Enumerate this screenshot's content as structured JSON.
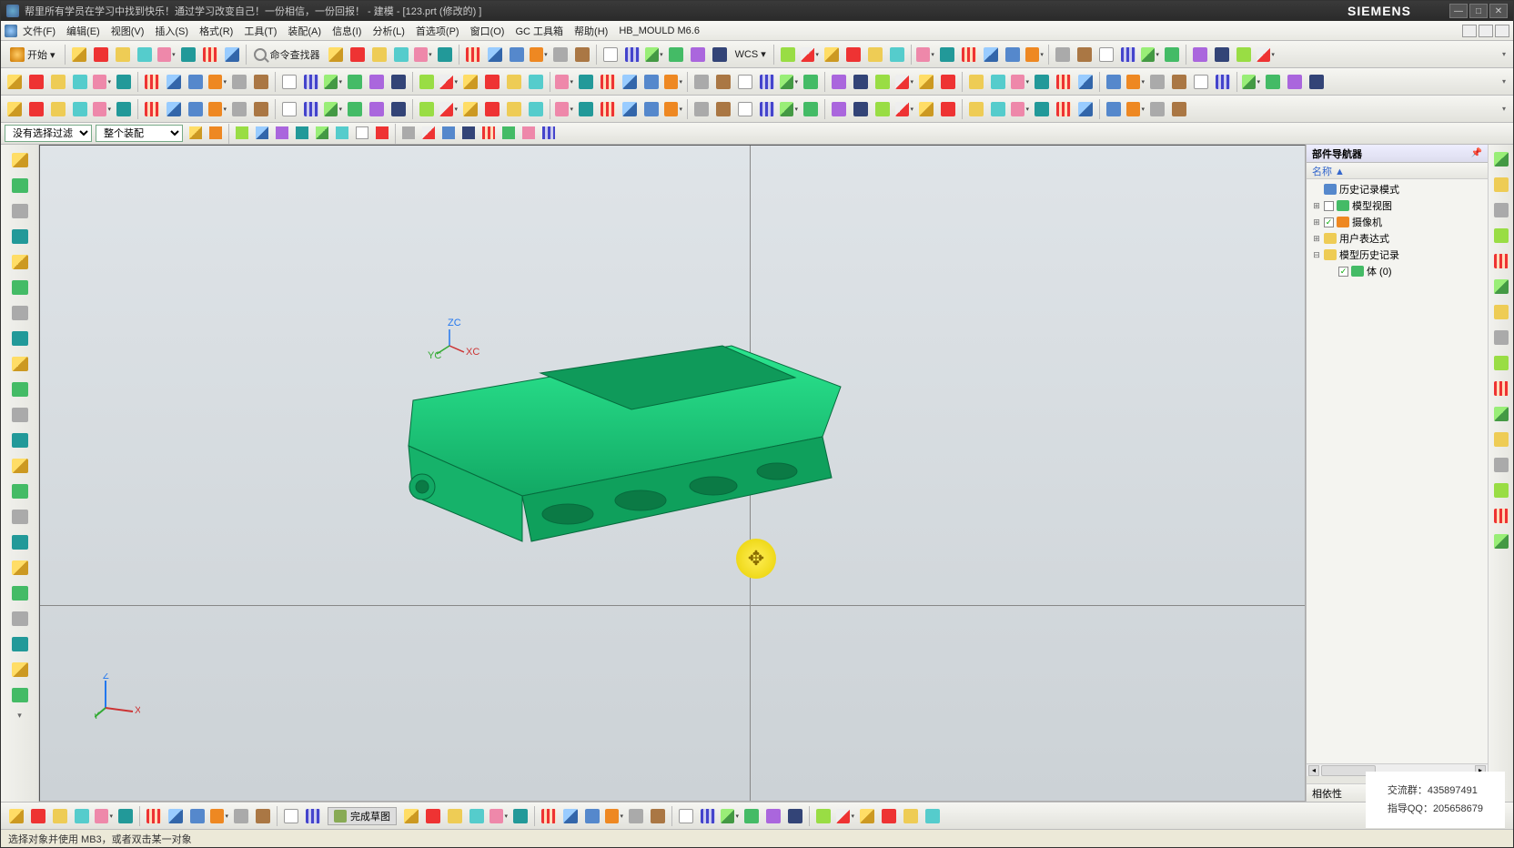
{
  "title": "帮里所有学员在学习中找到快乐！通过学习改变自己！一份相信，一份回报！ - 建模 - [123.prt (修改的) ]",
  "brand": "SIEMENS",
  "menubar": [
    {
      "label": "文件(F)",
      "u": "F"
    },
    {
      "label": "编辑(E)",
      "u": "E"
    },
    {
      "label": "视图(V)",
      "u": "V"
    },
    {
      "label": "插入(S)",
      "u": "S"
    },
    {
      "label": "格式(R)",
      "u": "R"
    },
    {
      "label": "工具(T)",
      "u": "T"
    },
    {
      "label": "装配(A)",
      "u": "A"
    },
    {
      "label": "信息(I)",
      "u": "I"
    },
    {
      "label": "分析(L)",
      "u": "L"
    },
    {
      "label": "首选项(P)",
      "u": "P"
    },
    {
      "label": "窗口(O)",
      "u": "O"
    },
    {
      "label": "GC 工具箱",
      "u": ""
    },
    {
      "label": "帮助(H)",
      "u": "H"
    },
    {
      "label": "HB_MOULD M6.6",
      "u": ""
    }
  ],
  "start_label": "开始 ▾",
  "cmd_finder_label": "命令查找器",
  "wcs_label": "WCS ▾",
  "filter_label1": "没有选择过滤器",
  "filter_label2": "整个装配",
  "navigator": {
    "title": "部件导航器",
    "col": "名称  ▲",
    "nodes": [
      {
        "indent": 0,
        "exp": "",
        "icon": "c-blue",
        "label": "历史记录模式",
        "check": false
      },
      {
        "indent": 0,
        "exp": "⊞",
        "icon": "c-green",
        "label": "模型视图",
        "check": true
      },
      {
        "indent": 0,
        "exp": "⊞",
        "icon": "c-orange",
        "label": "摄像机",
        "check": true,
        "greencheck": true
      },
      {
        "indent": 0,
        "exp": "⊞",
        "icon": "c-yellow",
        "label": "用户表达式",
        "check": false
      },
      {
        "indent": 0,
        "exp": "⊟",
        "icon": "c-yellow",
        "label": "模型历史记录",
        "check": false
      },
      {
        "indent": 1,
        "exp": "",
        "icon": "c-green",
        "label": "体 (0)",
        "check": true,
        "greencheck": true
      }
    ],
    "dep_label": "相依性"
  },
  "bottom": {
    "sketch_done": "完成草图"
  },
  "status": "选择对象并使用 MB3，或者双击某一对象",
  "watermark": {
    "l1": "交流群：435897491",
    "l2": "指导QQ：205658679"
  },
  "colors": {
    "model_body": "#1cce7b",
    "model_edge": "#066b3d",
    "canvas_top": "#dfe4e8",
    "canvas_bot": "#ccd2d6",
    "cursor_mark": "#f5e640"
  },
  "toolbar_rows": {
    "row1_count": 48,
    "row2_count": 58,
    "row3_count": 52,
    "bottom_count": 38,
    "left_count": 22,
    "right_count": 16,
    "filter_btns": 18
  }
}
